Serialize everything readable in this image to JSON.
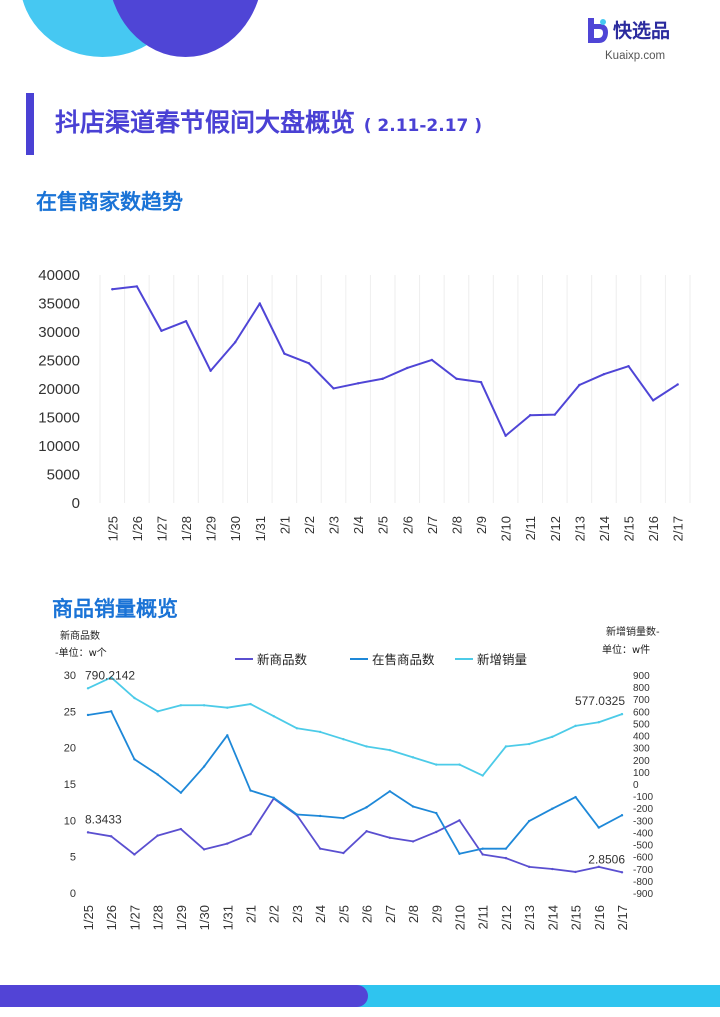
{
  "brand": {
    "name": "快选品",
    "url": "Kuaixp.com",
    "colors": {
      "primary": "#4a41d4",
      "accent": "#46c8f2",
      "section": "#1a73d6"
    }
  },
  "header": {
    "title": "抖店渠道春节假间大盘概览",
    "subtitle": "( 2.11-2.17 )"
  },
  "sections": {
    "merchants": "在售商家数趋势",
    "sales": "商品销量概览"
  },
  "chart_data": [
    {
      "type": "line",
      "title": "在售商家数趋势",
      "categories": [
        "1/25",
        "1/26",
        "1/27",
        "1/28",
        "1/29",
        "1/30",
        "1/31",
        "2/1",
        "2/2",
        "2/3",
        "2/4",
        "2/5",
        "2/6",
        "2/7",
        "2/8",
        "2/9",
        "2/10",
        "2/11",
        "2/12",
        "2/13",
        "2/14",
        "2/15",
        "2/16",
        "2/17"
      ],
      "series": [
        {
          "values": [
            37500,
            38000,
            30200,
            31900,
            23200,
            28200,
            35000,
            26200,
            24500,
            20100,
            21000,
            21800,
            23700,
            25100,
            21800,
            21200,
            11800,
            15400,
            15500,
            20700,
            22600,
            24000,
            18000,
            20800
          ],
          "color": "#4f45d6"
        }
      ],
      "ylim": [
        0,
        40000
      ],
      "yticks": [
        0,
        5000,
        10000,
        15000,
        20000,
        25000,
        30000,
        35000,
        40000
      ],
      "grid": true
    },
    {
      "type": "line",
      "title": "商品销量概览",
      "y_left_label": [
        "新商品数",
        "-单位：w个"
      ],
      "y_right_label": [
        "新增销量数-",
        "单位：w件"
      ],
      "categories": [
        "1/25",
        "1/26",
        "1/27",
        "1/28",
        "1/29",
        "1/30",
        "1/31",
        "2/1",
        "2/2",
        "2/3",
        "2/4",
        "2/5",
        "2/6",
        "2/7",
        "2/8",
        "2/9",
        "2/10",
        "2/11",
        "2/12",
        "2/13",
        "2/14",
        "2/15",
        "2/16",
        "2/17"
      ],
      "series": [
        {
          "name": "新商品数",
          "axis": "left",
          "color": "#5a4fd0",
          "values": [
            8.3433,
            7.8,
            5.3,
            7.9,
            8.8,
            6.0,
            6.8,
            8.1,
            13.0,
            10.7,
            6.1,
            5.5,
            8.5,
            7.6,
            7.1,
            8.4,
            10.0,
            5.3,
            4.8,
            3.6,
            3.3,
            2.9,
            3.6,
            2.8506
          ]
        },
        {
          "name": "在售商品数",
          "axis": "left",
          "color": "#1e88d8",
          "values": [
            24.5,
            25.0,
            18.4,
            16.3,
            13.8,
            17.4,
            21.7,
            14.1,
            13.1,
            10.8,
            10.6,
            10.3,
            11.8,
            14.0,
            11.9,
            11.0,
            5.4,
            6.1,
            6.1,
            9.9,
            11.6,
            13.2,
            9.0,
            10.7
          ]
        },
        {
          "name": "新增销量",
          "axis": "right",
          "color": "#4ccbe8",
          "values": [
            790.2142,
            880,
            710,
            600,
            650,
            650,
            630,
            660,
            560,
            460,
            430,
            370,
            310,
            280,
            220,
            160,
            160,
            70,
            310,
            330,
            390,
            480,
            510,
            577.0325
          ]
        }
      ],
      "annotations": [
        {
          "series": "新增销量",
          "index": 0,
          "text": "790.2142"
        },
        {
          "series": "新商品数",
          "index": 0,
          "text": "8.3433"
        },
        {
          "series": "新增销量",
          "index": 23,
          "text": "577.0325"
        },
        {
          "series": "新商品数",
          "index": 23,
          "text": "2.8506"
        }
      ],
      "ylim_left": [
        0,
        30
      ],
      "yticks_left": [
        0,
        5,
        10,
        15,
        20,
        25,
        30
      ],
      "ylim_right": [
        -900,
        900
      ],
      "yticks_right": [
        -900,
        -800,
        -700,
        -600,
        -500,
        -400,
        -300,
        -200,
        -100,
        0,
        100,
        200,
        300,
        400,
        500,
        600,
        700,
        800,
        900
      ],
      "legend": "top"
    }
  ]
}
